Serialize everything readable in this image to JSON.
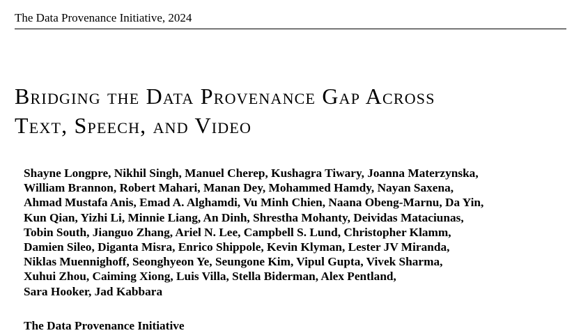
{
  "header": {
    "running_title": "The Data Provenance Initiative, 2024"
  },
  "paper": {
    "title_lines": [
      "Bridging the Data Provenance Gap Across",
      "Text, Speech, and Video"
    ],
    "author_lines": [
      "Shayne Longpre, Nikhil Singh, Manuel Cherep, Kushagra Tiwary, Joanna Materzynska,",
      "William Brannon, Robert Mahari, Manan Dey, Mohammed Hamdy, Nayan Saxena,",
      "Ahmad Mustafa Anis, Emad A. Alghamdi, Vu Minh Chien, Naana Obeng-Marnu, Da Yin,",
      "Kun Qian, Yizhi Li, Minnie Liang, An Dinh, Shrestha Mohanty, Deividas Mataciunas,",
      "Tobin South, Jianguo Zhang, Ariel N. Lee, Campbell S. Lund, Christopher Klamm,",
      "Damien Sileo, Diganta Misra, Enrico Shippole, Kevin Klyman, Lester JV Miranda,",
      "Niklas Muennighoff, Seonghyeon Ye, Seungone Kim, Vipul Gupta, Vivek Sharma,",
      "Xuhui Zhou, Caiming Xiong, Luis Villa, Stella Biderman, Alex Pentland,",
      "Sara Hooker, Jad Kabbara"
    ],
    "affiliation": "The Data Provenance Initiative"
  }
}
